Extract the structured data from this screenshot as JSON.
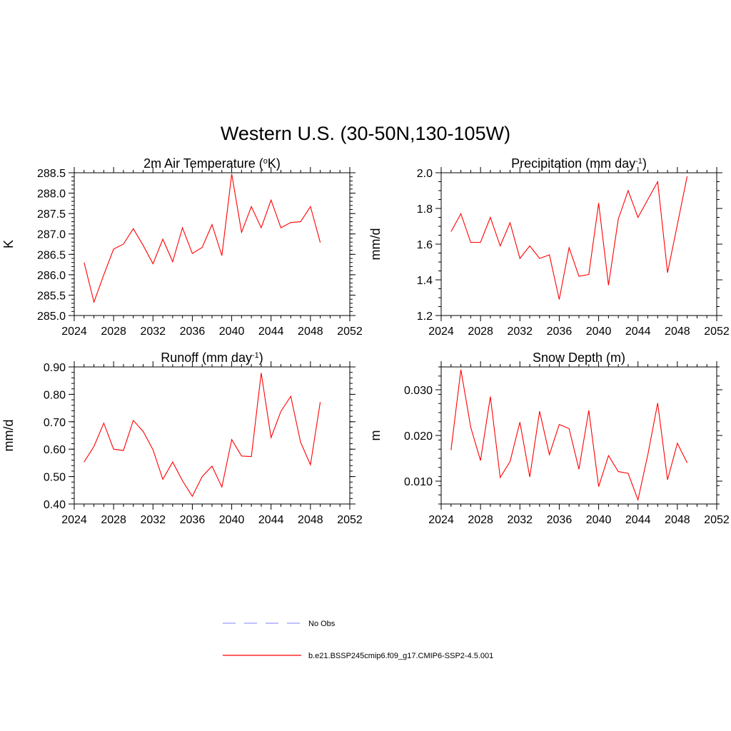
{
  "figure_title": "Western U.S. (30-50N,130-105W)",
  "legend": {
    "obs_label": "No Obs",
    "obs_color": "#9999ff",
    "model_label": "b.e21.BSSP245cmip6.f09_g17.CMIP6-SSP2-4.5.001",
    "model_color": "#ff0000"
  },
  "line_color": "#ff0000",
  "chart_data": [
    {
      "type": "line",
      "title": "2m Air Temperature (",
      "title_sup": "o",
      "title_after": "K)",
      "ylabel": "K",
      "xlim": [
        2024,
        2052
      ],
      "xticks": [
        2024,
        2028,
        2032,
        2036,
        2040,
        2044,
        2048,
        2052
      ],
      "ylim": [
        285.0,
        288.5
      ],
      "yticks": [
        285.0,
        285.5,
        286.0,
        286.5,
        287.0,
        287.5,
        288.0,
        288.5
      ],
      "ytick_decimals": 1,
      "yminor_step": 0.1,
      "x": [
        2025,
        2026,
        2027,
        2028,
        2029,
        2030,
        2031,
        2032,
        2033,
        2034,
        2035,
        2036,
        2037,
        2038,
        2039,
        2040,
        2041,
        2042,
        2043,
        2044,
        2045,
        2046,
        2047,
        2048,
        2049
      ],
      "y": [
        286.3,
        285.33,
        286.0,
        286.63,
        286.75,
        287.13,
        286.72,
        286.27,
        286.87,
        286.32,
        287.15,
        286.52,
        286.67,
        287.23,
        286.47,
        288.47,
        287.04,
        287.67,
        287.15,
        287.83,
        287.15,
        287.28,
        287.3,
        287.67,
        286.79
      ]
    },
    {
      "type": "line",
      "title": "Precipitation (mm day",
      "title_sup": "-1",
      "title_after": ")",
      "ylabel": "mm/d",
      "xlim": [
        2024,
        2052
      ],
      "xticks": [
        2024,
        2028,
        2032,
        2036,
        2040,
        2044,
        2048,
        2052
      ],
      "ylim": [
        1.2,
        2.0
      ],
      "yticks": [
        1.2,
        1.4,
        1.6,
        1.8,
        2.0
      ],
      "ytick_decimals": 1,
      "yminor_step": 0.05,
      "x": [
        2025,
        2026,
        2027,
        2028,
        2029,
        2030,
        2031,
        2032,
        2033,
        2034,
        2035,
        2036,
        2037,
        2038,
        2039,
        2040,
        2041,
        2042,
        2043,
        2044,
        2045,
        2046,
        2047,
        2048,
        2049
      ],
      "y": [
        1.67,
        1.77,
        1.61,
        1.61,
        1.75,
        1.59,
        1.72,
        1.52,
        1.59,
        1.52,
        1.54,
        1.29,
        1.58,
        1.42,
        1.43,
        1.83,
        1.37,
        1.74,
        1.9,
        1.75,
        1.85,
        1.95,
        1.44,
        1.71,
        1.98
      ]
    },
    {
      "type": "line",
      "title": "Runoff (mm day",
      "title_sup": "-1",
      "title_after": ")",
      "ylabel": "mm/d",
      "xlim": [
        2024,
        2052
      ],
      "xticks": [
        2024,
        2028,
        2032,
        2036,
        2040,
        2044,
        2048,
        2052
      ],
      "ylim": [
        0.4,
        0.9
      ],
      "yticks": [
        0.4,
        0.5,
        0.6,
        0.7,
        0.8,
        0.9
      ],
      "ytick_decimals": 2,
      "yminor_step": 0.02,
      "x": [
        2025,
        2026,
        2027,
        2028,
        2029,
        2030,
        2031,
        2032,
        2033,
        2034,
        2035,
        2036,
        2037,
        2038,
        2039,
        2040,
        2041,
        2042,
        2043,
        2044,
        2045,
        2046,
        2047,
        2048,
        2049
      ],
      "y": [
        0.553,
        0.61,
        0.695,
        0.6,
        0.595,
        0.705,
        0.665,
        0.598,
        0.49,
        0.553,
        0.485,
        0.428,
        0.5,
        0.538,
        0.462,
        0.635,
        0.575,
        0.573,
        0.878,
        0.642,
        0.738,
        0.793,
        0.625,
        0.543,
        0.772
      ]
    },
    {
      "type": "line",
      "title": "Snow Depth (m)",
      "title_sup": "",
      "title_after": "",
      "ylabel": "m",
      "xlim": [
        2024,
        2052
      ],
      "xticks": [
        2024,
        2028,
        2032,
        2036,
        2040,
        2044,
        2048,
        2052
      ],
      "ylim": [
        0.005,
        0.035
      ],
      "yticks": [
        0.01,
        0.02,
        0.03
      ],
      "ytick_decimals": 3,
      "yminor_step": 0.002,
      "x": [
        2025,
        2026,
        2027,
        2028,
        2029,
        2030,
        2031,
        2032,
        2033,
        2034,
        2035,
        2036,
        2037,
        2038,
        2039,
        2040,
        2041,
        2042,
        2043,
        2044,
        2045,
        2046,
        2047,
        2048,
        2049
      ],
      "y": [
        0.0168,
        0.0344,
        0.0218,
        0.0145,
        0.0285,
        0.0108,
        0.0143,
        0.0229,
        0.0109,
        0.0253,
        0.0158,
        0.0224,
        0.0215,
        0.0126,
        0.0255,
        0.0088,
        0.0156,
        0.0121,
        0.0117,
        0.0059,
        0.0158,
        0.0271,
        0.0103,
        0.0183,
        0.014
      ]
    }
  ]
}
